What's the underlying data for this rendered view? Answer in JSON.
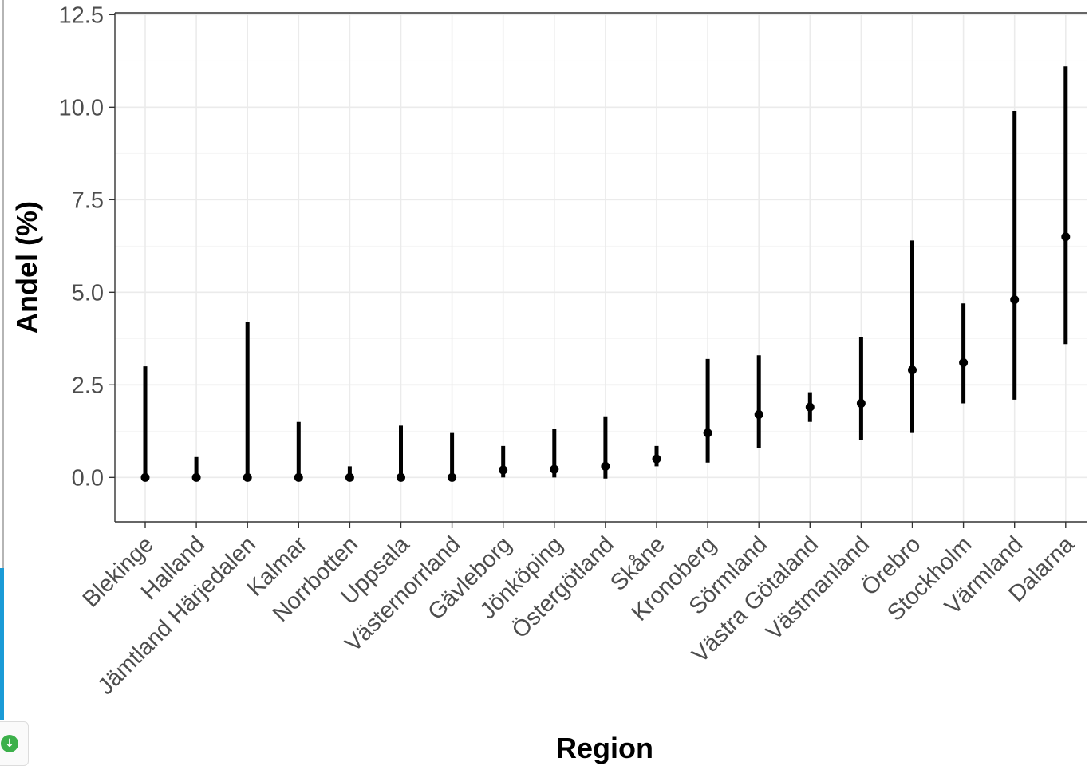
{
  "chart_data": {
    "type": "errorbar",
    "title": "",
    "xlabel": "Region",
    "ylabel": "Andel (%)",
    "ylim": [
      -1.2,
      12.55
    ],
    "y_ticks": [
      "0.0",
      "2.5",
      "5.0",
      "7.5",
      "10.0",
      "12.5"
    ],
    "grid": true,
    "marker_color": "#000000",
    "categories": [
      "Blekinge",
      "Halland",
      "Jämtland Härjedalen",
      "Kalmar",
      "Norrbotten",
      "Uppsala",
      "Västernorrland",
      "Gävleborg",
      "Jönköping",
      "Östergötland",
      "Skåne",
      "Kronoberg",
      "Sörmland",
      "Västra Götaland",
      "Västmanland",
      "Örebro",
      "Stockholm",
      "Värmland",
      "Dalarna"
    ],
    "values": [
      0.0,
      0.0,
      0.0,
      0.0,
      0.0,
      0.0,
      0.0,
      0.2,
      0.22,
      0.3,
      0.5,
      1.2,
      1.7,
      1.9,
      2.0,
      2.9,
      3.1,
      4.8,
      6.5
    ],
    "lower": [
      0.0,
      0.0,
      0.0,
      0.0,
      0.0,
      0.0,
      0.0,
      0.0,
      0.0,
      -0.03,
      0.3,
      0.4,
      0.8,
      1.5,
      1.0,
      1.2,
      2.0,
      2.1,
      3.6
    ],
    "upper": [
      3.0,
      0.55,
      4.2,
      1.5,
      0.3,
      1.4,
      1.2,
      0.85,
      1.3,
      1.65,
      0.85,
      3.2,
      3.3,
      2.3,
      3.8,
      6.4,
      4.7,
      9.9,
      11.1
    ]
  }
}
